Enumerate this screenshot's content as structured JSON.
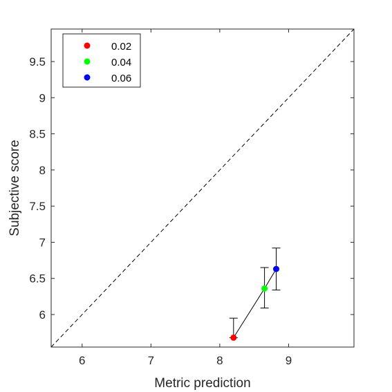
{
  "chart_data": {
    "type": "scatter",
    "title": "",
    "xlabel": "Metric prediction",
    "ylabel": "Subjective score",
    "xlim": [
      5.55,
      9.95
    ],
    "ylim": [
      5.55,
      9.95
    ],
    "xticks": [
      6,
      7,
      8,
      9
    ],
    "xtick_labels": [
      "6",
      "7",
      "8",
      "9"
    ],
    "yticks": [
      6,
      6.5,
      7,
      7.5,
      8,
      8.5,
      9,
      9.5
    ],
    "ytick_labels": [
      "6",
      "6.5",
      "7",
      "7.5",
      "8",
      "8.5",
      "9",
      "9.5"
    ],
    "grid": false,
    "legend_position": "top-left",
    "reference_line": {
      "style": "dashed",
      "from": [
        5.55,
        5.55
      ],
      "to": [
        9.95,
        9.95
      ]
    },
    "connect_points": true,
    "series": [
      {
        "name": "0.02",
        "color": "#ff0000",
        "x": 8.2,
        "y": 5.68,
        "err_low": 5.68,
        "err_high": 5.95
      },
      {
        "name": "0.04",
        "color": "#00ff00",
        "x": 8.65,
        "y": 6.36,
        "err_low": 6.09,
        "err_high": 6.65
      },
      {
        "name": "0.06",
        "color": "#0000ff",
        "x": 8.82,
        "y": 6.63,
        "err_low": 6.34,
        "err_high": 6.92
      }
    ]
  }
}
